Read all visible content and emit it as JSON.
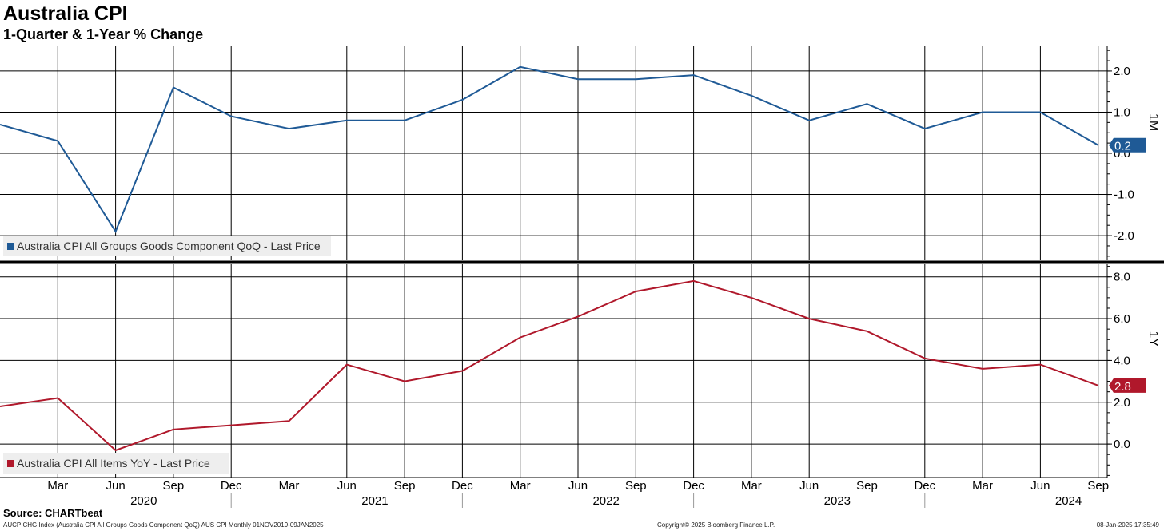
{
  "header": {
    "title": "Australia CPI",
    "subtitle": "1-Quarter & 1-Year % Change"
  },
  "footer": {
    "source": "Source: CHARTbeat",
    "ticker_info": "AUCPICHG Index (Australia CPI All Groups Goods Component QoQ) AUS CPI  Monthly 01NOV2019-09JAN2025",
    "copyright": "Copyright© 2025 Bloomberg Finance L.P.",
    "timestamp": "08-Jan-2025 17:35:49"
  },
  "colors": {
    "qoq_series": "#1f5a96",
    "yoy_series": "#b0182b"
  },
  "chart_data": [
    {
      "type": "line",
      "panel": "top",
      "side_label": "1M",
      "last_value_label": "0.2",
      "x": [
        "Dec 2019",
        "Mar 2020",
        "Jun 2020",
        "Sep 2020",
        "Dec 2020",
        "Mar 2021",
        "Jun 2021",
        "Sep 2021",
        "Dec 2021",
        "Mar 2022",
        "Jun 2022",
        "Sep 2022",
        "Dec 2022",
        "Mar 2023",
        "Jun 2023",
        "Sep 2023",
        "Dec 2023",
        "Mar 2024",
        "Jun 2024",
        "Sep 2024"
      ],
      "series": [
        {
          "name": "Australia CPI All Groups Goods Component QoQ - Last Price",
          "values": [
            0.7,
            0.3,
            -1.9,
            1.6,
            0.9,
            0.6,
            0.8,
            0.8,
            1.3,
            2.1,
            1.8,
            1.8,
            1.9,
            1.4,
            0.8,
            1.2,
            0.6,
            1.0,
            1.0,
            0.2
          ]
        }
      ],
      "yticks": [
        "2.0",
        "1.0",
        "0.0",
        "-1.0",
        "-2.0"
      ],
      "ylim": [
        -2.6,
        2.6
      ],
      "legend": "bottom-left",
      "grid": true
    },
    {
      "type": "line",
      "panel": "bottom",
      "side_label": "1Y",
      "last_value_label": "2.8",
      "x": [
        "Dec 2019",
        "Mar 2020",
        "Jun 2020",
        "Sep 2020",
        "Dec 2020",
        "Mar 2021",
        "Jun 2021",
        "Sep 2021",
        "Dec 2021",
        "Mar 2022",
        "Jun 2022",
        "Sep 2022",
        "Dec 2022",
        "Mar 2023",
        "Jun 2023",
        "Sep 2023",
        "Dec 2023",
        "Mar 2024",
        "Jun 2024",
        "Sep 2024"
      ],
      "series": [
        {
          "name": "Australia CPI All Items YoY - Last Price",
          "values": [
            1.8,
            2.2,
            -0.3,
            0.7,
            0.9,
            1.1,
            3.8,
            3.0,
            3.5,
            5.1,
            6.1,
            7.3,
            7.8,
            7.0,
            6.0,
            5.4,
            4.1,
            3.6,
            3.8,
            2.8
          ]
        }
      ],
      "yticks": [
        "8.0",
        "6.0",
        "4.0",
        "2.0",
        "0.0"
      ],
      "ylim": [
        -1.6,
        8.6
      ],
      "legend": "bottom-left",
      "grid": true
    }
  ],
  "x_axis": {
    "month_labels": [
      "Mar",
      "Jun",
      "Sep",
      "Dec",
      "Mar",
      "Jun",
      "Sep",
      "Dec",
      "Mar",
      "Jun",
      "Sep",
      "Dec",
      "Mar",
      "Jun",
      "Sep",
      "Dec",
      "Mar",
      "Jun",
      "Sep"
    ],
    "year_labels": [
      "2020",
      "2021",
      "2022",
      "2023",
      "2024"
    ]
  }
}
